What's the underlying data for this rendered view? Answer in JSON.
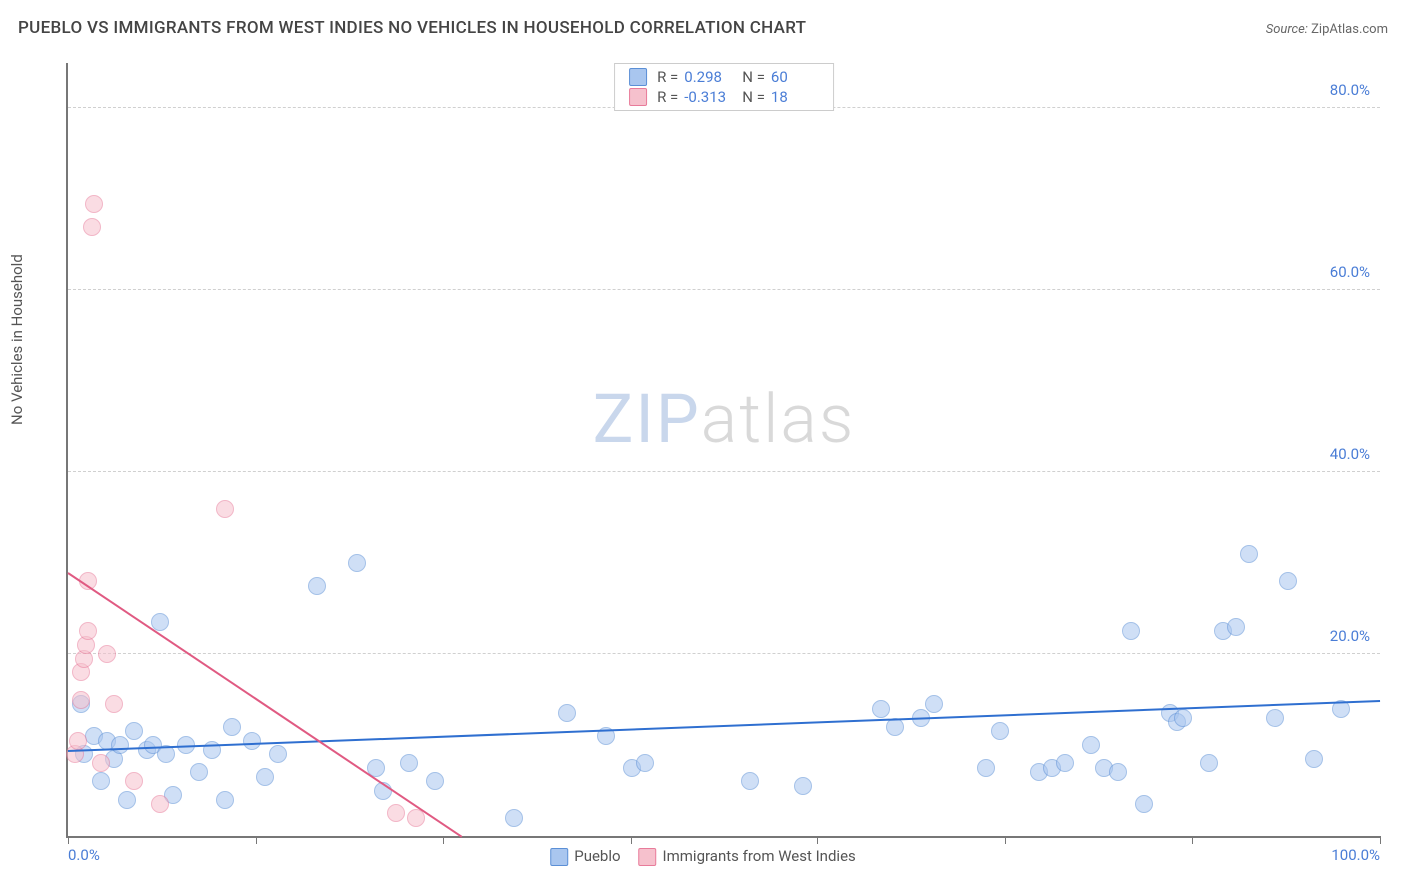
{
  "title": "PUEBLO VS IMMIGRANTS FROM WEST INDIES NO VEHICLES IN HOUSEHOLD CORRELATION CHART",
  "source_label": "Source:",
  "source_value": "ZipAtlas.com",
  "ylabel": "No Vehicles in Household",
  "watermark_a": "ZIP",
  "watermark_b": "atlas",
  "chart": {
    "type": "scatter",
    "background_color": "#ffffff",
    "grid_color": "#d0d0d0",
    "axis_color": "#777777",
    "label_color": "#4a7dd6",
    "xlim": [
      0,
      100
    ],
    "ylim": [
      0,
      85
    ],
    "yticks": [
      20,
      40,
      60,
      80
    ],
    "ytick_labels": [
      "20.0%",
      "40.0%",
      "60.0%",
      "80.0%"
    ],
    "xtick_positions": [
      0,
      14.3,
      28.6,
      42.9,
      57.1,
      71.4,
      85.7,
      100
    ],
    "xtick_labels_shown": {
      "0": "0.0%",
      "100": "100.0%"
    },
    "marker_radius": 9,
    "marker_opacity": 0.55,
    "trend_line_width": 2
  },
  "legend_top": {
    "rows": [
      {
        "swatch_fill": "#a9c6ef",
        "swatch_border": "#5b8fd6",
        "r_label": "R =",
        "r": "0.298",
        "n_label": "N =",
        "n": "60"
      },
      {
        "swatch_fill": "#f6c1cd",
        "swatch_border": "#e87b9a",
        "r_label": "R =",
        "r": "-0.313",
        "n_label": "N =",
        "n": "18"
      }
    ]
  },
  "legend_bottom": {
    "items": [
      {
        "swatch_fill": "#a9c6ef",
        "swatch_border": "#5b8fd6",
        "label": "Pueblo"
      },
      {
        "swatch_fill": "#f6c1cd",
        "swatch_border": "#e87b9a",
        "label": "Immigrants from West Indies"
      }
    ]
  },
  "series": [
    {
      "name": "Pueblo",
      "color_fill": "#a9c6ef",
      "color_border": "#5b8fd6",
      "trend_color": "#2f6fd0",
      "trend": {
        "x1": 0,
        "y1": 9.5,
        "x2": 100,
        "y2": 15.0
      },
      "points": [
        [
          1.0,
          14.5
        ],
        [
          1.2,
          9.0
        ],
        [
          2.0,
          11.0
        ],
        [
          2.5,
          6.0
        ],
        [
          3.0,
          10.5
        ],
        [
          3.5,
          8.5
        ],
        [
          4.0,
          10.0
        ],
        [
          4.5,
          4.0
        ],
        [
          5.0,
          11.5
        ],
        [
          6.0,
          9.5
        ],
        [
          6.5,
          10.0
        ],
        [
          7.0,
          23.5
        ],
        [
          7.5,
          9.0
        ],
        [
          8.0,
          4.5
        ],
        [
          9.0,
          10.0
        ],
        [
          10.0,
          7.0
        ],
        [
          11.0,
          9.5
        ],
        [
          12.0,
          4.0
        ],
        [
          12.5,
          12.0
        ],
        [
          14.0,
          10.5
        ],
        [
          15.0,
          6.5
        ],
        [
          16.0,
          9.0
        ],
        [
          19.0,
          27.5
        ],
        [
          22.0,
          30.0
        ],
        [
          23.5,
          7.5
        ],
        [
          24.0,
          5.0
        ],
        [
          26.0,
          8.0
        ],
        [
          28.0,
          6.0
        ],
        [
          34.0,
          2.0
        ],
        [
          38.0,
          13.5
        ],
        [
          41.0,
          11.0
        ],
        [
          43.0,
          7.5
        ],
        [
          44.0,
          8.0
        ],
        [
          52.0,
          6.0
        ],
        [
          56.0,
          5.5
        ],
        [
          62.0,
          14.0
        ],
        [
          63.0,
          12.0
        ],
        [
          65.0,
          13.0
        ],
        [
          66.0,
          14.5
        ],
        [
          70.0,
          7.5
        ],
        [
          71.0,
          11.5
        ],
        [
          74.0,
          7.0
        ],
        [
          75.0,
          7.5
        ],
        [
          76.0,
          8.0
        ],
        [
          78.0,
          10.0
        ],
        [
          79.0,
          7.5
        ],
        [
          80.0,
          7.0
        ],
        [
          81.0,
          22.5
        ],
        [
          82.0,
          3.5
        ],
        [
          84.0,
          13.5
        ],
        [
          84.5,
          12.5
        ],
        [
          85.0,
          13.0
        ],
        [
          87.0,
          8.0
        ],
        [
          88.0,
          22.5
        ],
        [
          89.0,
          23.0
        ],
        [
          90.0,
          31.0
        ],
        [
          92.0,
          13.0
        ],
        [
          93.0,
          28.0
        ],
        [
          95.0,
          8.5
        ],
        [
          97.0,
          14.0
        ]
      ]
    },
    {
      "name": "Immigrants from West Indies",
      "color_fill": "#f6c1cd",
      "color_border": "#e87b9a",
      "trend_color": "#e05a82",
      "trend": {
        "x1": 0,
        "y1": 29.0,
        "x2": 30,
        "y2": 0.0
      },
      "points": [
        [
          0.5,
          9.0
        ],
        [
          0.8,
          10.5
        ],
        [
          1.0,
          15.0
        ],
        [
          1.0,
          18.0
        ],
        [
          1.2,
          19.5
        ],
        [
          1.4,
          21.0
        ],
        [
          1.5,
          22.5
        ],
        [
          1.5,
          28.0
        ],
        [
          1.8,
          67.0
        ],
        [
          2.0,
          69.5
        ],
        [
          2.5,
          8.0
        ],
        [
          3.0,
          20.0
        ],
        [
          3.5,
          14.5
        ],
        [
          5.0,
          6.0
        ],
        [
          7.0,
          3.5
        ],
        [
          12.0,
          36.0
        ],
        [
          25.0,
          2.5
        ],
        [
          26.5,
          2.0
        ]
      ]
    }
  ]
}
